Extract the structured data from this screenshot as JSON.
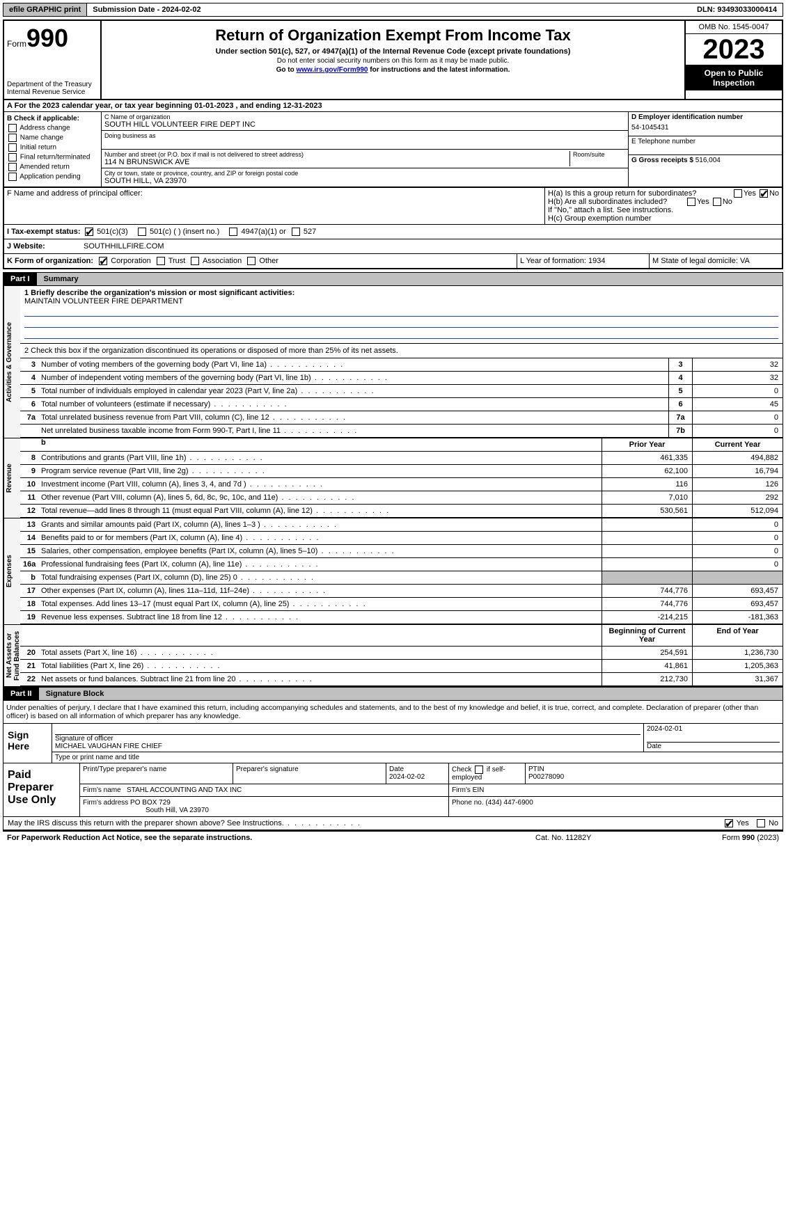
{
  "topbar": {
    "efile_label": "efile GRAPHIC print",
    "submission_label": "Submission Date - 2024-02-02",
    "dln_label": "DLN: 93493033000414"
  },
  "header": {
    "form_prefix": "Form",
    "form_number": "990",
    "title": "Return of Organization Exempt From Income Tax",
    "subtitle": "Under section 501(c), 527, or 4947(a)(1) of the Internal Revenue Code (except private foundations)",
    "note1": "Do not enter social security numbers on this form as it may be made public.",
    "note2_prefix": "Go to ",
    "note2_link": "www.irs.gov/Form990",
    "note2_suffix": " for instructions and the latest information.",
    "dept": "Department of the Treasury\nInternal Revenue Service",
    "omb": "OMB No. 1545-0047",
    "year": "2023",
    "open": "Open to Public Inspection"
  },
  "sectionA": "A For the 2023 calendar year, or tax year beginning 01-01-2023   , and ending 12-31-2023",
  "boxB": {
    "label": "B Check if applicable:",
    "opts": [
      "Address change",
      "Name change",
      "Initial return",
      "Final return/terminated",
      "Amended return",
      "Application pending"
    ]
  },
  "boxC": {
    "name_label": "C Name of organization",
    "name": "SOUTH HILL VOLUNTEER FIRE DEPT INC",
    "dba_label": "Doing business as",
    "addr_label": "Number and street (or P.O. box if mail is not delivered to street address)",
    "addr": "114 N BRUNSWICK AVE",
    "room_label": "Room/suite",
    "city_label": "City or town, state or province, country, and ZIP or foreign postal code",
    "city": "SOUTH HILL, VA  23970"
  },
  "boxD": {
    "ein_label": "D Employer identification number",
    "ein": "54-1045431",
    "tel_label": "E Telephone number",
    "gross_label": "G Gross receipts $ ",
    "gross": "516,004"
  },
  "rowF": "F  Name and address of principal officer:",
  "rowH": {
    "ha": "H(a)  Is this a group return for subordinates?",
    "hb": "H(b)  Are all subordinates included?",
    "hb_note": "If \"No,\" attach a list. See instructions.",
    "hc": "H(c)  Group exemption number",
    "yes": "Yes",
    "no": "No"
  },
  "rowI": {
    "label": "I  Tax-exempt status:",
    "opt1": "501(c)(3)",
    "opt2": "501(c) (  ) (insert no.)",
    "opt3": "4947(a)(1) or",
    "opt4": "527"
  },
  "rowJ": {
    "label": "J  Website:",
    "value": "SOUTHHILLFIRE.COM"
  },
  "rowK": {
    "label": "K Form of organization:",
    "opts": [
      "Corporation",
      "Trust",
      "Association",
      "Other"
    ]
  },
  "rowL": "L Year of formation: 1934",
  "rowM": "M State of legal domicile: VA",
  "part1": {
    "part": "Part I",
    "title": "Summary"
  },
  "part2": {
    "part": "Part II",
    "title": "Signature Block"
  },
  "summary": {
    "line1_label": "1  Briefly describe the organization's mission or most significant activities:",
    "line1_val": "MAINTAIN VOLUNTEER FIRE DEPARTMENT",
    "line2": "2   Check this box  if the organization discontinued its operations or disposed of more than 25% of its net assets.",
    "rows_ag": [
      {
        "n": "3",
        "t": "Number of voting members of the governing body (Part VI, line 1a)",
        "box": "3",
        "v": "32"
      },
      {
        "n": "4",
        "t": "Number of independent voting members of the governing body (Part VI, line 1b)",
        "box": "4",
        "v": "32"
      },
      {
        "n": "5",
        "t": "Total number of individuals employed in calendar year 2023 (Part V, line 2a)",
        "box": "5",
        "v": "0"
      },
      {
        "n": "6",
        "t": "Total number of volunteers (estimate if necessary)",
        "box": "6",
        "v": "45"
      },
      {
        "n": "7a",
        "t": "Total unrelated business revenue from Part VIII, column (C), line 12",
        "box": "7a",
        "v": "0"
      },
      {
        "n": "",
        "t": "Net unrelated business taxable income from Form 990-T, Part I, line 11",
        "box": "7b",
        "v": "0"
      }
    ],
    "hdr_b": "b",
    "hdr_prior": "Prior Year",
    "hdr_current": "Current Year",
    "rows_rev": [
      {
        "n": "8",
        "t": "Contributions and grants (Part VIII, line 1h)",
        "p": "461,335",
        "c": "494,882"
      },
      {
        "n": "9",
        "t": "Program service revenue (Part VIII, line 2g)",
        "p": "62,100",
        "c": "16,794"
      },
      {
        "n": "10",
        "t": "Investment income (Part VIII, column (A), lines 3, 4, and 7d )",
        "p": "116",
        "c": "126"
      },
      {
        "n": "11",
        "t": "Other revenue (Part VIII, column (A), lines 5, 6d, 8c, 9c, 10c, and 11e)",
        "p": "7,010",
        "c": "292"
      },
      {
        "n": "12",
        "t": "Total revenue—add lines 8 through 11 (must equal Part VIII, column (A), line 12)",
        "p": "530,561",
        "c": "512,094"
      }
    ],
    "rows_exp": [
      {
        "n": "13",
        "t": "Grants and similar amounts paid (Part IX, column (A), lines 1–3 )",
        "p": "",
        "c": "0"
      },
      {
        "n": "14",
        "t": "Benefits paid to or for members (Part IX, column (A), line 4)",
        "p": "",
        "c": "0"
      },
      {
        "n": "15",
        "t": "Salaries, other compensation, employee benefits (Part IX, column (A), lines 5–10)",
        "p": "",
        "c": "0"
      },
      {
        "n": "16a",
        "t": "Professional fundraising fees (Part IX, column (A), line 11e)",
        "p": "",
        "c": "0"
      },
      {
        "n": "b",
        "t": "Total fundraising expenses (Part IX, column (D), line 25) 0",
        "p": "shaded",
        "c": "shaded"
      },
      {
        "n": "17",
        "t": "Other expenses (Part IX, column (A), lines 11a–11d, 11f–24e)",
        "p": "744,776",
        "c": "693,457"
      },
      {
        "n": "18",
        "t": "Total expenses. Add lines 13–17 (must equal Part IX, column (A), line 25)",
        "p": "744,776",
        "c": "693,457"
      },
      {
        "n": "19",
        "t": "Revenue less expenses. Subtract line 18 from line 12",
        "p": "-214,215",
        "c": "-181,363"
      }
    ],
    "hdr_begin": "Beginning of Current Year",
    "hdr_end": "End of Year",
    "rows_na": [
      {
        "n": "20",
        "t": "Total assets (Part X, line 16)",
        "p": "254,591",
        "c": "1,236,730"
      },
      {
        "n": "21",
        "t": "Total liabilities (Part X, line 26)",
        "p": "41,861",
        "c": "1,205,363"
      },
      {
        "n": "22",
        "t": "Net assets or fund balances. Subtract line 21 from line 20",
        "p": "212,730",
        "c": "31,367"
      }
    ],
    "vtabs": {
      "ag": "Activities & Governance",
      "rev": "Revenue",
      "exp": "Expenses",
      "na": "Net Assets or\nFund Balances"
    }
  },
  "part2_text": "Under penalties of perjury, I declare that I have examined this return, including accompanying schedules and statements, and to the best of my knowledge and belief, it is true, correct, and complete. Declaration of preparer (other than officer) is based on all information of which preparer has any knowledge.",
  "sign": {
    "label": "Sign Here",
    "sig_label": "Signature of officer",
    "name": "MICHAEL VAUGHAN FIRE CHIEF",
    "name_label": "Type or print name and title",
    "date_label": "Date",
    "date": "2024-02-01"
  },
  "preparer": {
    "label": "Paid Preparer Use Only",
    "h1": "Print/Type preparer's name",
    "h2": "Preparer's signature",
    "h3": "Date",
    "date": "2024-02-02",
    "h4_a": "Check",
    "h4_b": "if self-employed",
    "h5": "PTIN",
    "ptin": "P00278090",
    "firm_name_label": "Firm's name",
    "firm_name": "STAHL ACCOUNTING AND TAX INC",
    "firm_ein_label": "Firm's EIN",
    "firm_addr_label": "Firm's address",
    "firm_addr1": "PO BOX 729",
    "firm_addr2": "South Hill, VA  23970",
    "phone_label": "Phone no.",
    "phone": "(434) 447-6900"
  },
  "discuss": {
    "text": "May the IRS discuss this return with the preparer shown above? See Instructions.",
    "yes": "Yes",
    "no": "No"
  },
  "footer": {
    "left": "For Paperwork Reduction Act Notice, see the separate instructions.",
    "mid": "Cat. No. 11282Y",
    "right_prefix": "Form ",
    "right_form": "990",
    "right_suffix": " (2023)"
  },
  "colors": {
    "bar_bg": "#c0c0c0",
    "black": "#000000",
    "link": "#0000cc",
    "rule": "#1a4ba8"
  }
}
